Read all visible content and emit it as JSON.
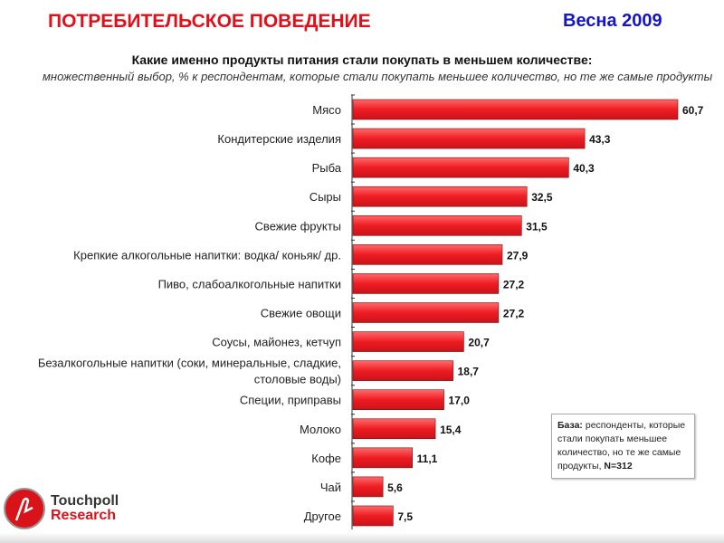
{
  "header": {
    "title": "ПОТРЕБИТЕЛЬСКОЕ ПОВЕДЕНИЕ",
    "season": "Весна 2009"
  },
  "chart_data": {
    "type": "bar",
    "orientation": "horizontal",
    "title": "Какие именно продукты питания стали покупать в меньшем количестве:",
    "subtitle": "множественный выбор, % к респондентам, которые стали покупать меньшее количество, но те же самые продукты",
    "categories": [
      "Мясо",
      "Кондитерские изделия",
      "Рыба",
      "Сыры",
      "Свежие фрукты",
      "Крепкие алкогольные напитки: водка/ коньяк/ др.",
      "Пиво, слабоалкогольные напитки",
      "Свежие овощи",
      "Соусы, майонез, кетчуп",
      "Безалкогольные напитки (соки, минеральные, сладкие, столовые воды)",
      "Специи, приправы",
      "Молоко",
      "Кофе",
      "Чай",
      "Другое"
    ],
    "values": [
      60.7,
      43.3,
      40.3,
      32.5,
      31.5,
      27.9,
      27.2,
      27.2,
      20.7,
      18.7,
      17.0,
      15.4,
      11.1,
      5.6,
      7.5
    ],
    "labels": [
      "60,7",
      "43,3",
      "40,3",
      "32,5",
      "31,5",
      "27,9",
      "27,2",
      "27,2",
      "20,7",
      "18,7",
      "17,0",
      "15,4",
      "11,1",
      "5,6",
      "7,5"
    ],
    "xlim": [
      0,
      61
    ],
    "bar_color": "#e8161c"
  },
  "base_note": {
    "label": "База:",
    "text": " респонденты, которые стали покупать меньшее количество, но те же самые продукты, ",
    "n": "N=312"
  },
  "logo": {
    "line1": "Touchpoll",
    "line2": "Research"
  }
}
